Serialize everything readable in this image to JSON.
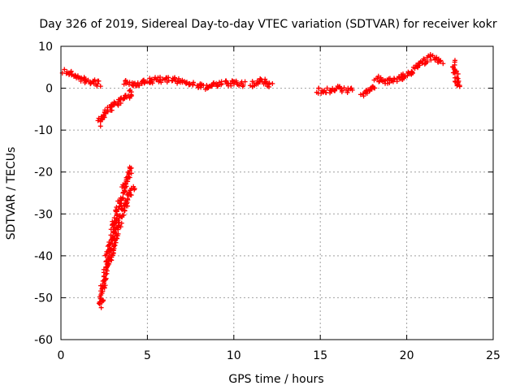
{
  "chart_data": {
    "type": "scatter",
    "title": "Day 326 of 2019, Sidereal Day-to-day VTEC variation (SDTVAR) for receiver kokr",
    "xlabel": "GPS time / hours",
    "ylabel": "SDTVAR / TECUs",
    "xlim": [
      0,
      25
    ],
    "ylim": [
      -60,
      10
    ],
    "xticks": [
      0,
      5,
      10,
      15,
      20,
      25
    ],
    "yticks": [
      -60,
      -50,
      -40,
      -30,
      -20,
      -10,
      0,
      10
    ],
    "grid": true,
    "marker": "plus",
    "series": [
      {
        "name": "SDTVAR",
        "color": "#ff0000",
        "segments": [
          {
            "name": "segment-early-positive",
            "x": [
              0.2,
              0.5,
              0.8,
              1.1,
              1.4,
              1.7,
              2.0,
              2.2
            ],
            "y": [
              4.2,
              3.5,
              3.0,
              2.2,
              1.8,
              1.3,
              1.5,
              1.0
            ]
          },
          {
            "name": "segment-recovery-arc",
            "x": [
              2.2,
              2.4,
              2.6,
              2.8,
              3.0,
              3.3,
              3.6,
              3.9,
              4.1
            ],
            "y": [
              -8.5,
              -7.0,
              -5.6,
              -4.8,
              -3.9,
              -3.2,
              -2.5,
              -1.8,
              -1.0
            ]
          },
          {
            "name": "segment-steep-left",
            "x": [
              2.3,
              2.5,
              2.7,
              2.9,
              3.1,
              3.3,
              3.5,
              3.7,
              3.9,
              4.1
            ],
            "y": [
              -52,
              -45,
              -40,
              -36,
              -32,
              -29,
              -26,
              -23,
              -21,
              -19
            ]
          },
          {
            "name": "segment-steep-right",
            "x": [
              2.8,
              3.0,
              3.2,
              3.4,
              3.6,
              3.8,
              4.0,
              4.2
            ],
            "y": [
              -42,
              -38,
              -35,
              -32,
              -29,
              -27,
              -25,
              -23.5
            ]
          },
          {
            "name": "segment-midday-band",
            "x": [
              3.7,
              4.2,
              4.7,
              5.2,
              5.7,
              6.2,
              6.7,
              7.2,
              7.7,
              8.2,
              8.7,
              9.2,
              9.7,
              10.2,
              10.6
            ],
            "y": [
              1.2,
              1.0,
              1.5,
              1.8,
              2.0,
              2.1,
              1.8,
              1.5,
              0.8,
              0.3,
              0.6,
              1.0,
              1.2,
              1.1,
              0.9
            ]
          },
          {
            "name": "segment-noon-cluster",
            "x": [
              11.0,
              11.3,
              11.6,
              11.9,
              12.2
            ],
            "y": [
              0.5,
              1.5,
              2.0,
              1.2,
              0.8
            ]
          },
          {
            "name": "segment-afternoon-a",
            "x": [
              14.8,
              15.3,
              15.8,
              16.3,
              16.8
            ],
            "y": [
              -0.5,
              -0.8,
              0.0,
              -0.3,
              -0.6
            ]
          },
          {
            "name": "segment-afternoon-b",
            "x": [
              17.4,
              17.8,
              18.2
            ],
            "y": [
              -1.5,
              -0.5,
              0.5
            ]
          },
          {
            "name": "segment-evening-rise",
            "x": [
              18.2,
              18.7,
              19.2,
              19.7,
              20.2,
              20.6,
              21.0,
              21.4,
              21.8,
              22.0
            ],
            "y": [
              2.5,
              1.5,
              2.2,
              2.5,
              3.5,
              5.5,
              6.5,
              7.5,
              7.0,
              6.0
            ]
          },
          {
            "name": "segment-late-spike",
            "x": [
              22.7,
              22.8,
              22.9,
              23.0
            ],
            "y": [
              6.0,
              4.0,
              2.0,
              0.5
            ]
          }
        ]
      }
    ]
  }
}
